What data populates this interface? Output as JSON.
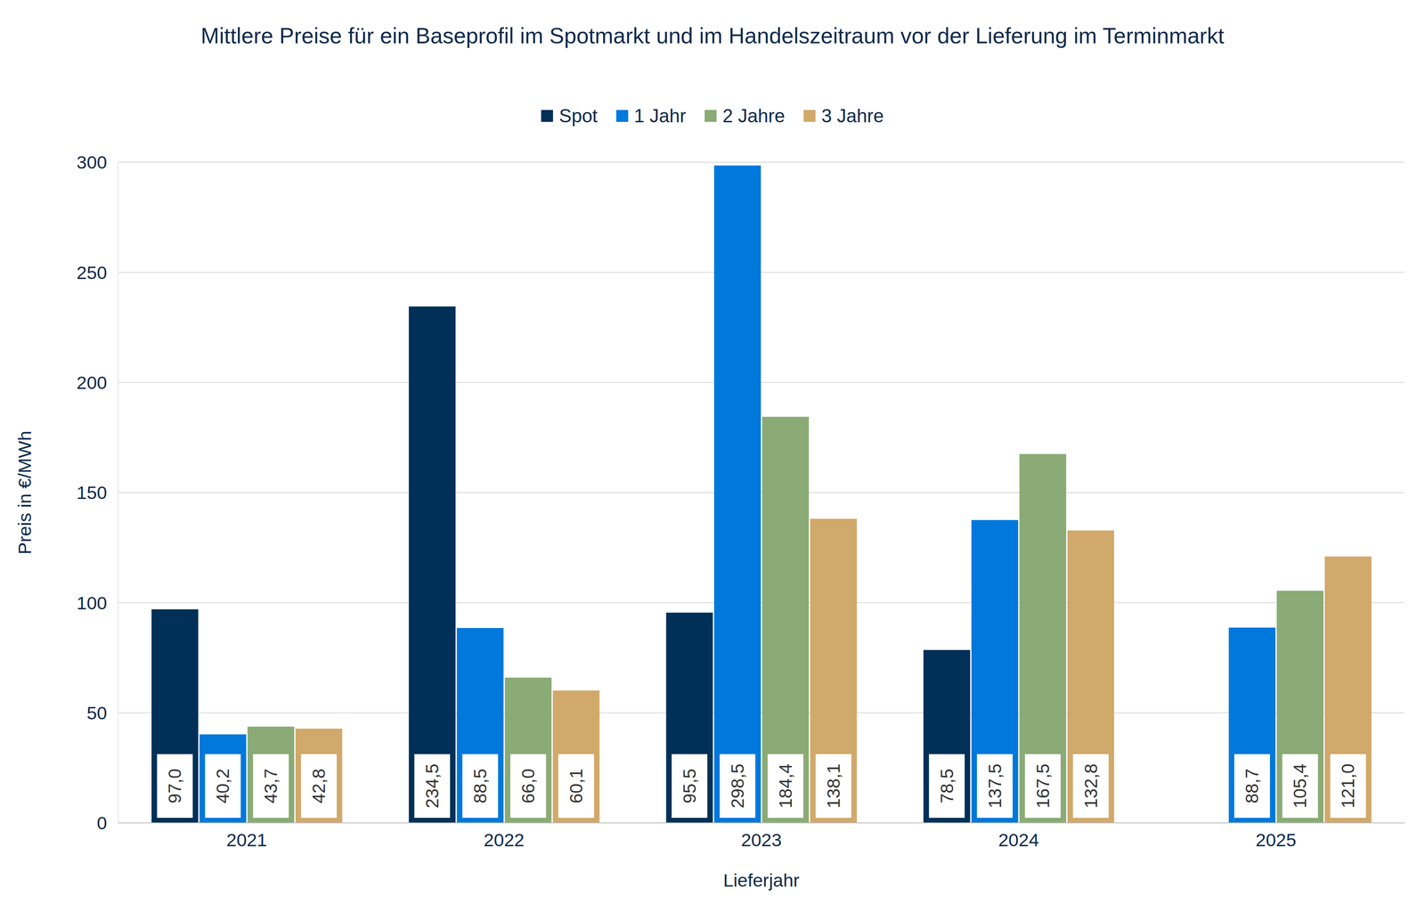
{
  "chart_data": {
    "type": "bar",
    "title": "Mittlere Preise für ein Baseprofil im Spotmarkt und im Handelszeitraum vor der Lieferung im Terminmarkt",
    "x_label": "Lieferjahr",
    "y_label": "Preis in €/MWh",
    "categories": [
      "2021",
      "2022",
      "2023",
      "2024",
      "2025"
    ],
    "series": [
      {
        "name": "Spot",
        "color": "#003057",
        "values": [
          97.0,
          234.5,
          95.5,
          78.5,
          null
        ],
        "value_labels": [
          "97,0",
          "234,5",
          "95,5",
          "78,5",
          null
        ]
      },
      {
        "name": "1 Jahr",
        "color": "#0078dc",
        "values": [
          40.2,
          88.5,
          298.5,
          137.5,
          88.7
        ],
        "value_labels": [
          "40,2",
          "88,5",
          "298,5",
          "137,5",
          "88,7"
        ]
      },
      {
        "name": "2 Jahre",
        "color": "#8aab75",
        "values": [
          43.7,
          66.0,
          184.4,
          167.5,
          105.4
        ],
        "value_labels": [
          "43,7",
          "66,0",
          "184,4",
          "167,5",
          "105,4"
        ]
      },
      {
        "name": "3 Jahre",
        "color": "#d1a96a",
        "values": [
          42.8,
          60.1,
          138.1,
          132.8,
          121.0
        ],
        "value_labels": [
          "42,8",
          "60,1",
          "138,1",
          "132,8",
          "121,0"
        ]
      }
    ],
    "ylim": [
      0,
      300
    ],
    "yticks": [
      0,
      50,
      100,
      150,
      200,
      250,
      300
    ],
    "grid": true,
    "legend": "top",
    "data_labels": true
  }
}
